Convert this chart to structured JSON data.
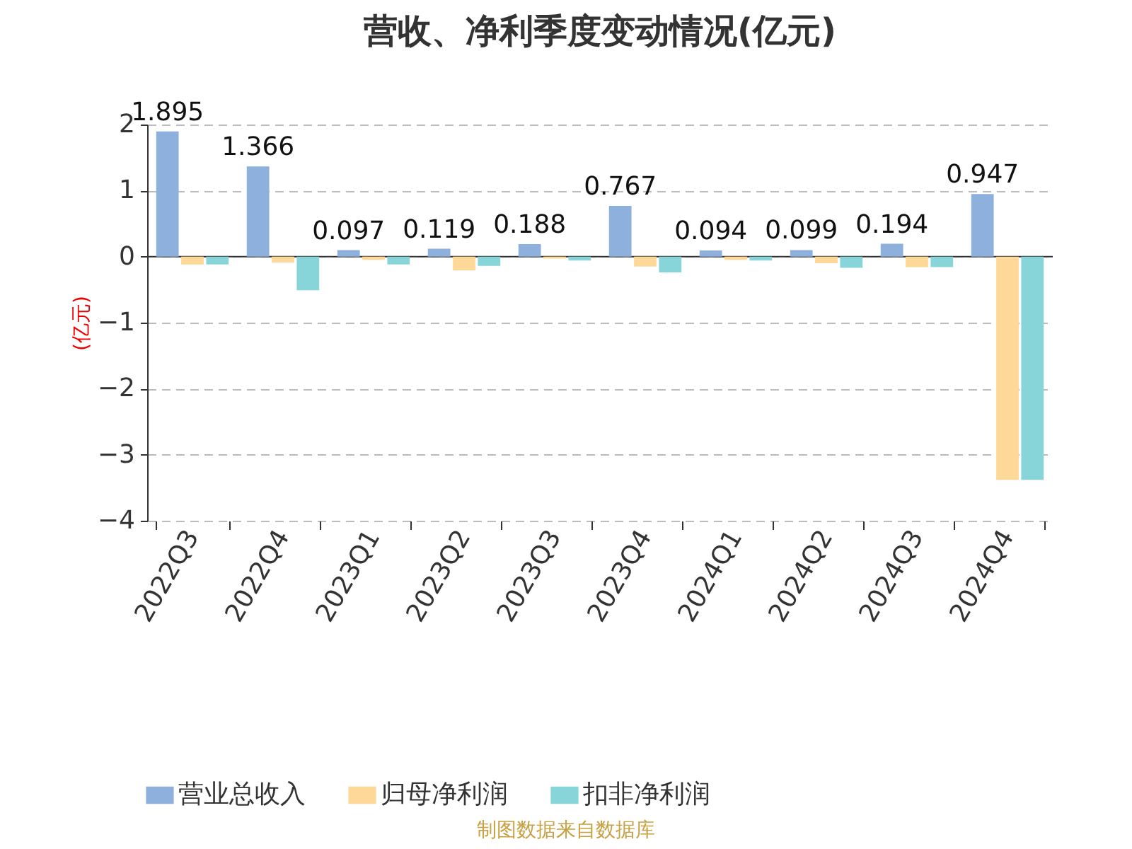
{
  "chart_data": {
    "type": "bar",
    "title": "营收、净利季度变动情况(亿元)",
    "ylabel": "(亿元)",
    "categories": [
      "2022Q3",
      "2022Q4",
      "2023Q1",
      "2023Q2",
      "2023Q3",
      "2023Q4",
      "2024Q1",
      "2024Q2",
      "2024Q3",
      "2024Q4"
    ],
    "series": [
      {
        "name": "营业总收入",
        "color": "#8eb0dc",
        "values": [
          1.895,
          1.366,
          0.097,
          0.119,
          0.188,
          0.767,
          0.094,
          0.099,
          0.194,
          0.947
        ],
        "value_labels": [
          "1.895",
          "1.366",
          "0.097",
          "0.119",
          "0.188",
          "0.767",
          "0.094",
          "0.099",
          "0.194",
          "0.947"
        ]
      },
      {
        "name": "归母净利润",
        "color": "#fdd898",
        "values": [
          -0.12,
          -0.09,
          -0.05,
          -0.21,
          -0.03,
          -0.15,
          -0.05,
          -0.1,
          -0.16,
          -3.38
        ]
      },
      {
        "name": "扣非净利润",
        "color": "#87d5d8",
        "values": [
          -0.12,
          -0.51,
          -0.12,
          -0.14,
          -0.06,
          -0.24,
          -0.06,
          -0.17,
          -0.16,
          -3.38
        ]
      }
    ],
    "ylim": [
      -4,
      2
    ],
    "yticks": [
      -4,
      -3,
      -2,
      -1,
      0,
      1,
      2
    ],
    "grid": "y",
    "legend": "bottom",
    "annotations": [
      "制图数据来自数据库"
    ]
  }
}
